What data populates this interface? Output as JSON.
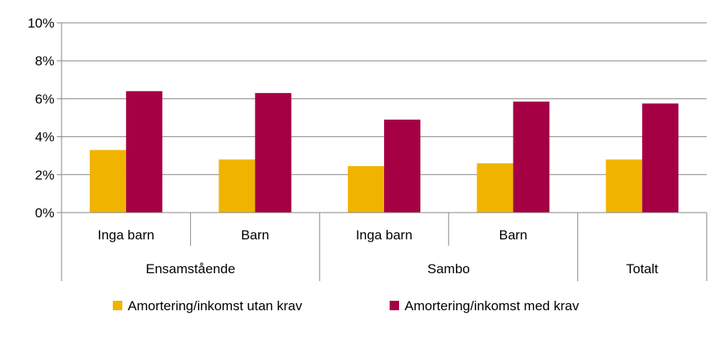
{
  "chart_data": {
    "type": "bar",
    "groups": [
      {
        "label": "Ensamstående",
        "categories": [
          "Inga barn",
          "Barn"
        ]
      },
      {
        "label": "Sambo",
        "categories": [
          "Inga barn",
          "Barn"
        ]
      },
      {
        "label": "Totalt",
        "categories": [
          ""
        ]
      }
    ],
    "categories": [
      "Inga barn",
      "Barn",
      "Inga barn",
      "Barn",
      ""
    ],
    "series": [
      {
        "name": "Amortering/inkomst utan krav",
        "color": "#F0B400",
        "values": [
          3.3,
          2.8,
          2.45,
          2.6,
          2.8
        ]
      },
      {
        "name": "Amortering/inkomst med krav",
        "color": "#A50044",
        "values": [
          6.4,
          6.3,
          4.9,
          5.85,
          5.75
        ]
      }
    ],
    "yticks": [
      "0%",
      "2%",
      "4%",
      "6%",
      "8%",
      "10%"
    ],
    "ylim": [
      0,
      10
    ],
    "grid": true,
    "legend_position": "bottom"
  }
}
